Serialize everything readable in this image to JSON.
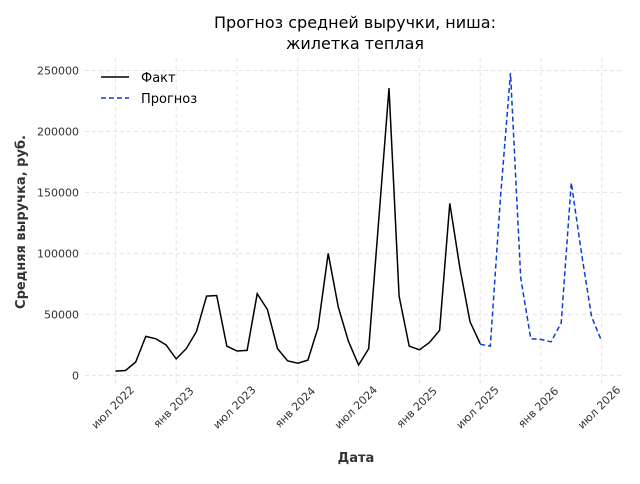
{
  "chart_data": {
    "type": "line",
    "title": "Прогноз средней выручки, ниша:\nжилетка теплая",
    "x_label": "Дата",
    "y_label": "Средняя выручка, руб.",
    "x": [
      "2022-07",
      "2022-08",
      "2022-09",
      "2022-10",
      "2022-11",
      "2022-12",
      "2023-01",
      "2023-02",
      "2023-03",
      "2023-04",
      "2023-05",
      "2023-06",
      "2023-07",
      "2023-08",
      "2023-09",
      "2023-10",
      "2023-11",
      "2023-12",
      "2024-01",
      "2024-02",
      "2024-03",
      "2024-04",
      "2024-05",
      "2024-06",
      "2024-07",
      "2024-08",
      "2024-09",
      "2024-10",
      "2024-11",
      "2024-12",
      "2025-01",
      "2025-02",
      "2025-03",
      "2025-04",
      "2025-05",
      "2025-06",
      "2025-07",
      "2025-08",
      "2025-09",
      "2025-10",
      "2025-11",
      "2025-12",
      "2026-01",
      "2026-02",
      "2026-03",
      "2026-04",
      "2026-05",
      "2026-06",
      "2026-07"
    ],
    "series": [
      {
        "name": "Факт",
        "color": "#000000",
        "dash": false,
        "values": [
          3500,
          4000,
          11000,
          32000,
          30000,
          25000,
          13500,
          22000,
          36000,
          65000,
          65500,
          24000,
          20000,
          20500,
          67000,
          54000,
          22000,
          12000,
          10000,
          12500,
          39000,
          100000,
          56000,
          28000,
          8500,
          22000,
          128000,
          235500,
          65000,
          24000,
          21000,
          27000,
          37000,
          141000,
          88000,
          44000,
          26000,
          null,
          null,
          null,
          null,
          null,
          null,
          null,
          null,
          null,
          null,
          null,
          null
        ]
      },
      {
        "name": "Прогноз",
        "color": "#0a3fd6",
        "dash": true,
        "values": [
          null,
          null,
          null,
          null,
          null,
          null,
          null,
          null,
          null,
          null,
          null,
          null,
          null,
          null,
          null,
          null,
          null,
          null,
          null,
          null,
          null,
          null,
          null,
          null,
          null,
          null,
          null,
          null,
          null,
          null,
          null,
          null,
          null,
          null,
          null,
          null,
          25500,
          24000,
          145000,
          248000,
          80000,
          30000,
          29500,
          27500,
          43000,
          158000,
          100000,
          48000,
          28000
        ]
      }
    ],
    "xlim": [
      "2022-04",
      "2026-09"
    ],
    "xticks": [
      {
        "value": "2022-07",
        "label": "июл 2022"
      },
      {
        "value": "2023-01",
        "label": "янв 2023"
      },
      {
        "value": "2023-07",
        "label": "июл 2023"
      },
      {
        "value": "2024-01",
        "label": "янв 2024"
      },
      {
        "value": "2024-07",
        "label": "июл 2024"
      },
      {
        "value": "2025-01",
        "label": "янв 2025"
      },
      {
        "value": "2025-07",
        "label": "июл 2025"
      },
      {
        "value": "2026-01",
        "label": "янв 2026"
      },
      {
        "value": "2026-07",
        "label": "июл 2026"
      }
    ],
    "ylim": [
      -8700,
      260200
    ],
    "yticks": [
      0,
      50000,
      100000,
      150000,
      200000,
      250000
    ],
    "grid": true,
    "legend": "upper-left"
  }
}
